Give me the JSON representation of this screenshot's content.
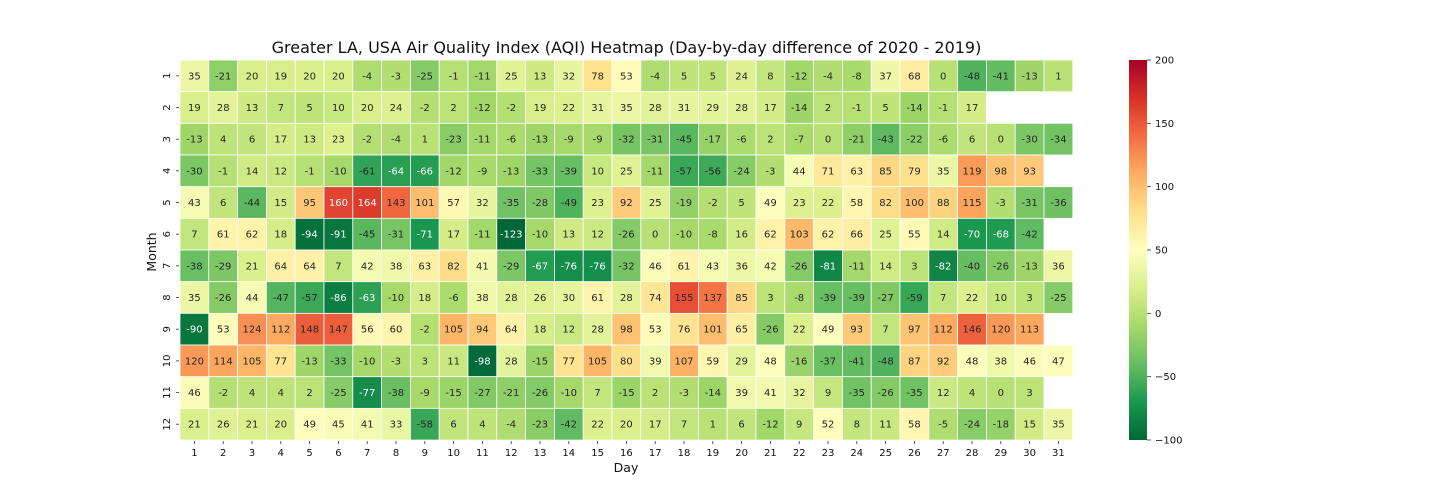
{
  "chart_data": {
    "type": "heatmap",
    "title": "Greater LA, USA Air Quality Index (AQI) Heatmap (Day-by-day difference of 2020 - 2019)",
    "xlabel": "Day",
    "ylabel": "Month",
    "x": [
      1,
      2,
      3,
      4,
      5,
      6,
      7,
      8,
      9,
      10,
      11,
      12,
      13,
      14,
      15,
      16,
      17,
      18,
      19,
      20,
      21,
      22,
      23,
      24,
      25,
      26,
      27,
      28,
      29,
      30,
      31
    ],
    "y": [
      1,
      2,
      3,
      4,
      5,
      6,
      7,
      8,
      9,
      10,
      11,
      12
    ],
    "values": [
      [
        35,
        -21,
        20,
        19,
        20,
        20,
        -4,
        -3,
        -25,
        -1,
        -11,
        25,
        13,
        32,
        78,
        53,
        -4,
        5,
        5,
        24,
        8,
        -12,
        -4,
        -8,
        37,
        68,
        0,
        -48,
        -41,
        -13,
        1
      ],
      [
        19,
        28,
        13,
        7,
        5,
        10,
        20,
        24,
        -2,
        2,
        -12,
        -2,
        19,
        22,
        31,
        35,
        28,
        31,
        29,
        28,
        17,
        -14,
        2,
        -1,
        5,
        -14,
        -1,
        17,
        null,
        null,
        null
      ],
      [
        -13,
        4,
        6,
        17,
        13,
        23,
        -2,
        -4,
        1,
        -23,
        -11,
        -6,
        -13,
        -9,
        -9,
        -32,
        -31,
        -45,
        -17,
        -6,
        2,
        -7,
        0,
        -21,
        -43,
        -22,
        -6,
        6,
        0,
        -30,
        -34
      ],
      [
        -30,
        -1,
        14,
        12,
        -1,
        -10,
        -61,
        -64,
        -66,
        -12,
        -9,
        -13,
        -33,
        -39,
        10,
        25,
        -11,
        -57,
        -56,
        -24,
        -3,
        44,
        71,
        63,
        85,
        79,
        35,
        119,
        98,
        93,
        null
      ],
      [
        43,
        6,
        -44,
        15,
        95,
        160,
        164,
        143,
        101,
        57,
        32,
        -35,
        -28,
        -49,
        23,
        92,
        25,
        -19,
        -2,
        5,
        49,
        23,
        22,
        58,
        82,
        100,
        88,
        115,
        -3,
        -31,
        -36
      ],
      [
        7,
        61,
        62,
        18,
        -94,
        -91,
        -45,
        -31,
        -71,
        17,
        -11,
        -123,
        -10,
        13,
        12,
        -26,
        0,
        -10,
        -8,
        16,
        62,
        103,
        62,
        66,
        25,
        55,
        14,
        -70,
        -68,
        -42,
        null
      ],
      [
        -38,
        -29,
        21,
        64,
        64,
        7,
        42,
        38,
        63,
        82,
        41,
        -29,
        -67,
        -76,
        -76,
        -32,
        46,
        61,
        43,
        36,
        42,
        -26,
        -81,
        -11,
        14,
        3,
        -82,
        -40,
        -26,
        -13,
        36
      ],
      [
        35,
        -26,
        44,
        -47,
        -57,
        -86,
        -63,
        -10,
        18,
        -6,
        38,
        28,
        26,
        30,
        61,
        28,
        74,
        155,
        137,
        85,
        3,
        -8,
        -39,
        -39,
        -27,
        -59,
        7,
        22,
        10,
        3,
        -25
      ],
      [
        -90,
        53,
        124,
        112,
        148,
        147,
        56,
        60,
        -2,
        105,
        94,
        64,
        18,
        12,
        28,
        98,
        53,
        76,
        101,
        65,
        -26,
        22,
        49,
        93,
        7,
        97,
        112,
        146,
        120,
        113,
        null
      ],
      [
        120,
        114,
        105,
        77,
        -13,
        -33,
        -10,
        -3,
        3,
        11,
        -98,
        28,
        -15,
        77,
        105,
        80,
        39,
        107,
        59,
        29,
        48,
        -16,
        -37,
        -41,
        -48,
        87,
        92,
        48,
        38,
        46,
        47
      ],
      [
        46,
        -2,
        4,
        4,
        2,
        -25,
        -77,
        -38,
        -9,
        -15,
        -27,
        -21,
        -26,
        -10,
        7,
        -15,
        2,
        -3,
        -14,
        39,
        41,
        32,
        9,
        -35,
        -26,
        -35,
        12,
        4,
        0,
        3,
        null
      ],
      [
        21,
        26,
        21,
        20,
        49,
        45,
        41,
        33,
        -58,
        6,
        4,
        -4,
        -23,
        -42,
        22,
        20,
        17,
        7,
        1,
        6,
        -12,
        9,
        52,
        8,
        11,
        58,
        -5,
        -24,
        -18,
        15,
        35
      ]
    ],
    "vmin": -100,
    "vmax": 200,
    "colormap": "RdYlGn_r",
    "colorbar_ticks": [
      -100,
      -50,
      0,
      50,
      100,
      150,
      200
    ],
    "colorbar_tick_labels": [
      "−100",
      "−50",
      "0",
      "50",
      "100",
      "150",
      "200"
    ]
  }
}
